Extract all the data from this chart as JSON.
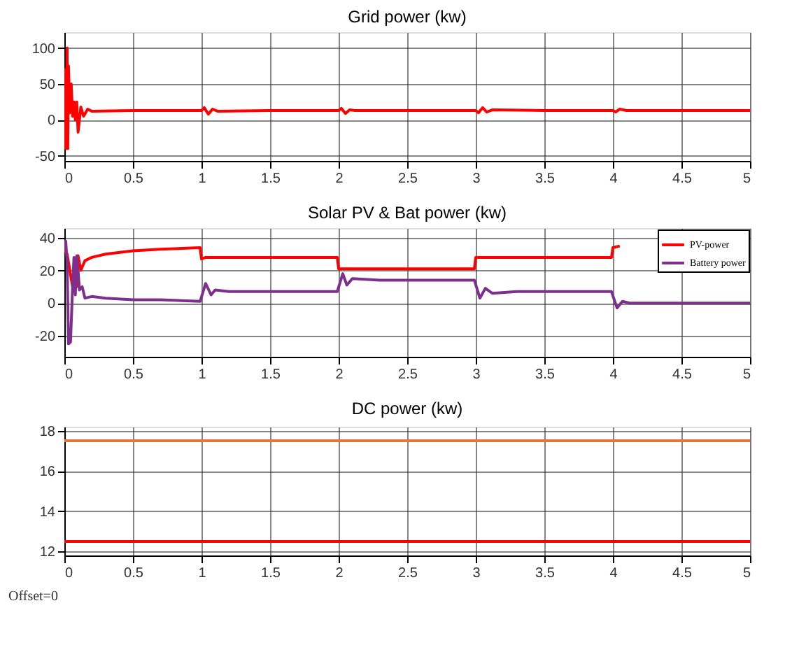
{
  "chart_data": [
    {
      "type": "line",
      "title": "Grid power (kw)",
      "xlim": [
        0,
        5
      ],
      "ylim": [
        -57,
        122
      ],
      "xticks": [
        0,
        0.5,
        1,
        1.5,
        2,
        2.5,
        3,
        3.5,
        4,
        4.5,
        5
      ],
      "yticks": [
        -50,
        0,
        50,
        100
      ],
      "grid": true,
      "series": [
        {
          "color": "#ff0000",
          "x": [
            0,
            0.005,
            0.01,
            0.02,
            0.025,
            0.03,
            0.04,
            0.05,
            0.06,
            0.07,
            0.08,
            0.09,
            0.1,
            0.12,
            0.14,
            0.17,
            0.2,
            0.5,
            1.0,
            1.02,
            1.05,
            1.08,
            1.12,
            1.5,
            2.0,
            2.02,
            2.05,
            2.08,
            2.12,
            2.5,
            3.0,
            3.02,
            3.05,
            3.08,
            3.12,
            3.5,
            4.0,
            4.02,
            4.05,
            4.1,
            4.5,
            5
          ],
          "values": [
            0,
            70,
            -40,
            100,
            -40,
            75,
            10,
            50,
            5,
            25,
            0,
            25,
            -17,
            18,
            5,
            15,
            12,
            13,
            13,
            17,
            8,
            15,
            12,
            13,
            13,
            16,
            9,
            14,
            13,
            13,
            13,
            10,
            17,
            11,
            14,
            13,
            13,
            11,
            15,
            13,
            13,
            13
          ]
        }
      ]
    },
    {
      "type": "line",
      "title": "Solar PV & Bat power (kw)",
      "xlim": [
        0,
        5
      ],
      "ylim": [
        -33,
        46
      ],
      "xticks": [
        0,
        0.5,
        1,
        1.5,
        2,
        2.5,
        3,
        3.5,
        4,
        4.5,
        5
      ],
      "yticks": [
        -20,
        0,
        20,
        40
      ],
      "grid": true,
      "legend": "top right",
      "series": [
        {
          "name": "PV-power",
          "color": "#ff0000",
          "x": [
            0,
            0.02,
            0.06,
            0.08,
            0.09,
            0.1,
            0.12,
            0.15,
            0.2,
            0.3,
            0.5,
            0.7,
            0.99,
            1.0,
            1.03,
            1.99,
            2.0,
            2.99,
            3.0,
            3.99,
            4.0,
            4.05
          ],
          "values": [
            33,
            30,
            10,
            27,
            10,
            29,
            20,
            26,
            28,
            30,
            32,
            33,
            34,
            27,
            28,
            28,
            21,
            21,
            28,
            28,
            34,
            35
          ]
        },
        {
          "name": "Battery power",
          "color": "#7e2f8e",
          "x": [
            0,
            0.01,
            0.02,
            0.03,
            0.045,
            0.06,
            0.07,
            0.08,
            0.09,
            0.1,
            0.11,
            0.13,
            0.15,
            0.2,
            0.3,
            0.5,
            0.7,
            0.99,
            1.03,
            1.07,
            1.1,
            1.2,
            1.99,
            2.03,
            2.06,
            2.1,
            2.3,
            2.99,
            3.03,
            3.07,
            3.12,
            3.3,
            3.99,
            4.03,
            4.07,
            4.12,
            5
          ],
          "values": [
            33,
            38,
            25,
            -25,
            -24,
            10,
            28,
            5,
            29,
            20,
            8,
            10,
            3,
            4,
            3,
            2,
            2,
            1,
            12,
            5,
            8,
            7,
            7,
            18,
            11,
            15,
            14,
            14,
            3,
            9,
            6,
            7,
            7,
            -3,
            1,
            0,
            0
          ]
        }
      ]
    },
    {
      "type": "line",
      "title": "DC power (kw)",
      "xlim": [
        0,
        5
      ],
      "ylim": [
        11.8,
        18.2
      ],
      "xticks": [
        0,
        0.5,
        1,
        1.5,
        2,
        2.5,
        3,
        3.5,
        4,
        4.5,
        5
      ],
      "yticks": [
        12,
        14,
        16,
        18
      ],
      "grid": true,
      "annotations": [
        "Offset=0"
      ],
      "series": [
        {
          "color": "#e8743b",
          "x": [
            0,
            5
          ],
          "values": [
            17.5,
            17.5
          ]
        },
        {
          "color": "#ff0000",
          "x": [
            0,
            5
          ],
          "values": [
            12.5,
            12.5
          ]
        }
      ]
    }
  ]
}
